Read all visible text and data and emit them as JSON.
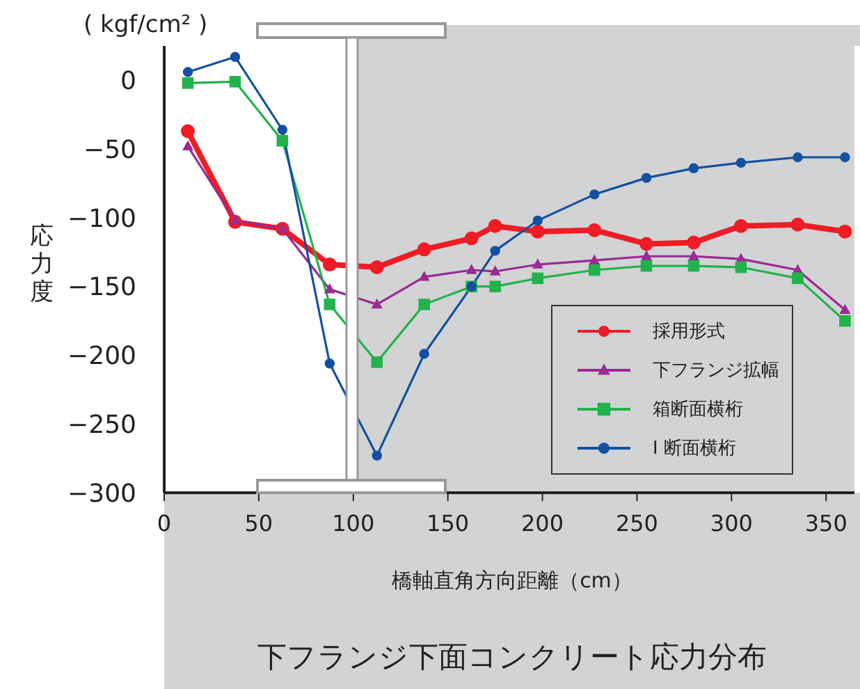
{
  "chart_data": {
    "type": "line",
    "title": "下フランジ下面コンクリート応力分布",
    "xlabel": "橋軸直角方向距離（cm）",
    "ylabel": "応力度",
    "annotations": [
      "( kgf/cm² )"
    ],
    "x": [
      12.5,
      37.5,
      62.5,
      87.5,
      112.5,
      137.5,
      162.5,
      175,
      197.5,
      227.5,
      255,
      280,
      305,
      335,
      360
    ],
    "series": [
      {
        "name": "採用形式",
        "color": "#ee1c25",
        "marker": "circle",
        "values": [
          -37,
          -103,
          -108,
          -134,
          -136,
          -123,
          -115,
          -106,
          -110,
          -109,
          -119,
          -118,
          -106,
          -105,
          -110
        ]
      },
      {
        "name": "下フランジ拡幅",
        "color": "#9b2a94",
        "marker": "triangle",
        "values": [
          -48,
          -102,
          -108,
          -152,
          -163,
          -143,
          -138,
          -139,
          -134,
          -131,
          -128,
          -128,
          -130,
          -138,
          -167
        ]
      },
      {
        "name": "箱断面横桁",
        "color": "#22b24c",
        "marker": "square",
        "values": [
          -2,
          -1,
          -44,
          -163,
          -205,
          -163,
          -150,
          -150,
          -144,
          -138,
          -135,
          -135,
          -136,
          -144,
          -175
        ]
      },
      {
        "name": "I 断面横桁",
        "color": "#1450a0",
        "marker": "circle",
        "values": [
          6,
          17,
          -36,
          -206,
          -273,
          -199,
          -150,
          -124,
          -102,
          -83,
          -71,
          -64,
          -60,
          -56,
          -56
        ]
      }
    ],
    "xlim": [
      0,
      365
    ],
    "ylim": [
      -300,
      25
    ],
    "xticks": [
      0,
      50,
      100,
      150,
      200,
      250,
      300,
      350
    ],
    "yticks": [
      0,
      -50,
      -100,
      -150,
      -200,
      -250,
      -300
    ],
    "bands": [
      {
        "axis": "x",
        "from": 102,
        "to": 365,
        "color": "#d1d3d4"
      }
    ],
    "grid": false,
    "legend": "bottom right",
    "line_style": "solid"
  }
}
